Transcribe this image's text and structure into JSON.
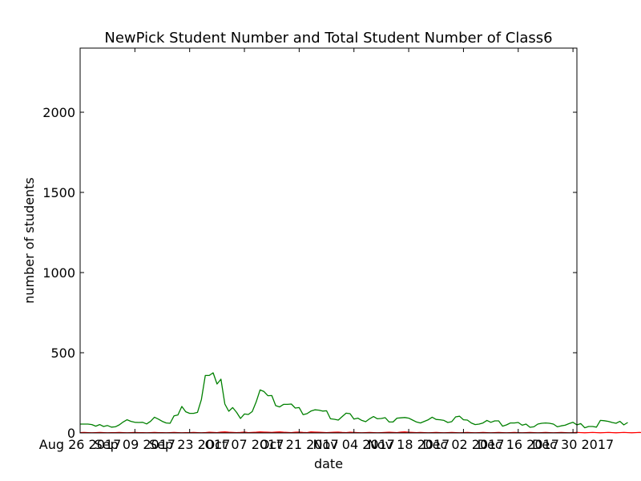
{
  "chart_data": {
    "type": "line",
    "title": "NewPick Student Number and Total Student Number of Class6",
    "xlabel": "date",
    "ylabel": "number of students",
    "ylim": [
      0,
      2400
    ],
    "yticks": [
      0,
      500,
      1000,
      1500,
      2000
    ],
    "x_start": "2017-08-26",
    "x_end": "2017-12-31",
    "xticks": [
      {
        "date": "2017-08-26",
        "label": "Aug 26 2017"
      },
      {
        "date": "2017-09-09",
        "label": "Sep 09 2017"
      },
      {
        "date": "2017-09-23",
        "label": "Sep 23 2017"
      },
      {
        "date": "2017-10-07",
        "label": "Oct 07 2017"
      },
      {
        "date": "2017-10-21",
        "label": "Oct 21 2017"
      },
      {
        "date": "2017-11-04",
        "label": "Nov 04 2017"
      },
      {
        "date": "2017-11-18",
        "label": "Nov 18 2017"
      },
      {
        "date": "2017-12-02",
        "label": "Dec 02 2017"
      },
      {
        "date": "2017-12-16",
        "label": "Dec 16 2017"
      },
      {
        "date": "2017-12-30",
        "label": "Dec 30 2017"
      }
    ],
    "grid": false,
    "series": [
      {
        "color": "#008000",
        "start_date": "2017-08-26",
        "values": [
          55,
          55,
          55,
          52,
          42,
          52,
          40,
          46,
          36,
          38,
          50,
          68,
          82,
          72,
          66,
          65,
          66,
          56,
          72,
          98,
          86,
          72,
          62,
          60,
          106,
          112,
          165,
          132,
          122,
          122,
          128,
          208,
          358,
          358,
          375,
          305,
          335,
          180,
          135,
          158,
          128,
          90,
          118,
          115,
          133,
          193,
          268,
          258,
          232,
          233,
          170,
          162,
          178,
          178,
          180,
          155,
          158,
          114,
          120,
          136,
          144,
          142,
          136,
          138,
          88,
          85,
          80,
          102,
          123,
          120,
          86,
          92,
          78,
          70,
          88,
          102,
          88,
          90,
          95,
          68,
          68,
          92,
          94,
          96,
          92,
          80,
          68,
          62,
          72,
          82,
          98,
          84,
          82,
          78,
          65,
          70,
          100,
          104,
          82,
          80,
          62,
          52,
          55,
          62,
          78,
          66,
          75,
          75,
          42,
          50,
          62,
          62,
          65,
          48,
          55,
          35,
          38,
          55,
          60,
          62,
          60,
          55,
          38,
          44,
          48,
          58,
          66,
          50,
          58,
          32,
          40,
          40,
          36,
          78,
          76,
          72,
          65,
          60,
          72,
          50,
          65
        ]
      },
      {
        "color": "#ff0000",
        "start_date": "2017-08-26",
        "values": [
          2,
          3,
          2,
          1,
          2,
          3,
          2,
          1,
          2,
          2,
          3,
          2,
          1,
          2,
          3,
          2,
          2,
          1,
          2,
          3,
          2,
          2,
          1,
          2,
          3,
          2,
          1,
          2,
          2,
          3,
          2,
          1,
          2,
          4,
          3,
          2,
          5,
          6,
          4,
          3,
          2,
          3,
          5,
          2,
          3,
          4,
          6,
          5,
          4,
          3,
          5,
          6,
          4,
          3,
          2,
          4,
          5,
          3,
          2,
          6,
          5,
          4,
          3,
          2,
          3,
          4,
          5,
          3,
          2,
          4,
          3,
          2,
          1,
          2,
          3,
          2,
          1,
          2,
          3,
          4,
          3,
          2,
          5,
          6,
          4,
          3,
          2,
          3,
          2,
          1,
          2,
          3,
          2,
          1,
          2,
          3,
          2,
          1,
          2,
          3,
          2,
          1,
          2,
          3,
          2,
          1,
          2,
          3,
          2,
          1,
          2,
          3,
          2,
          1,
          2,
          3,
          2,
          1,
          2,
          3,
          2,
          1,
          2,
          3,
          2,
          1,
          2,
          3,
          2,
          1,
          2,
          3,
          2,
          1,
          2,
          3,
          2,
          1,
          2,
          3,
          2,
          1,
          2,
          3,
          2,
          1,
          2
        ]
      }
    ]
  }
}
